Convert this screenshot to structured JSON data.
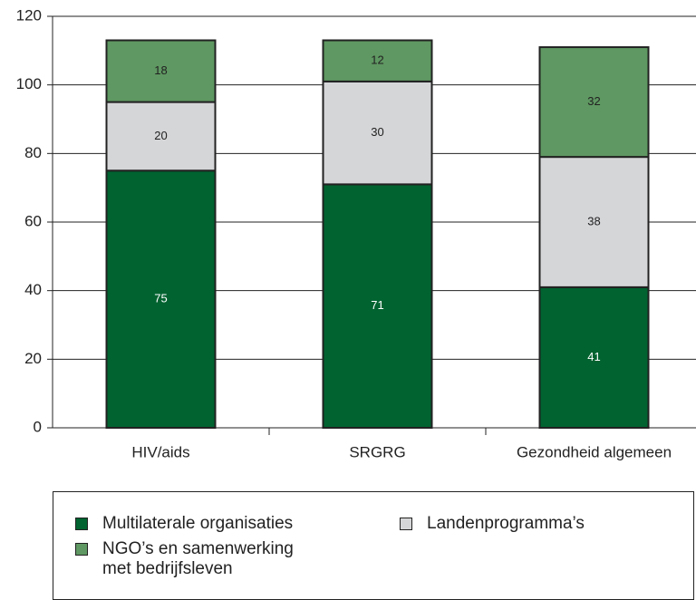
{
  "chart_data": {
    "type": "stacked_bar",
    "categories": [
      "HIV/aids",
      "SRGRG",
      "Gezondheid algemeen"
    ],
    "series": [
      {
        "name": "Multilaterale organisaties",
        "color": "#006330",
        "values": [
          75,
          71,
          41
        ]
      },
      {
        "name": "Landenprogramma’s",
        "color": "#d5d6d8",
        "values": [
          20,
          30,
          38
        ]
      },
      {
        "name": "NGO’s en samenwerking met bedrijfsleven",
        "color": "#5f9862",
        "values": [
          18,
          12,
          32
        ]
      }
    ],
    "ylim": [
      0,
      120
    ],
    "yticks": [
      0,
      20,
      40,
      60,
      80,
      100,
      120
    ],
    "grid": true
  }
}
